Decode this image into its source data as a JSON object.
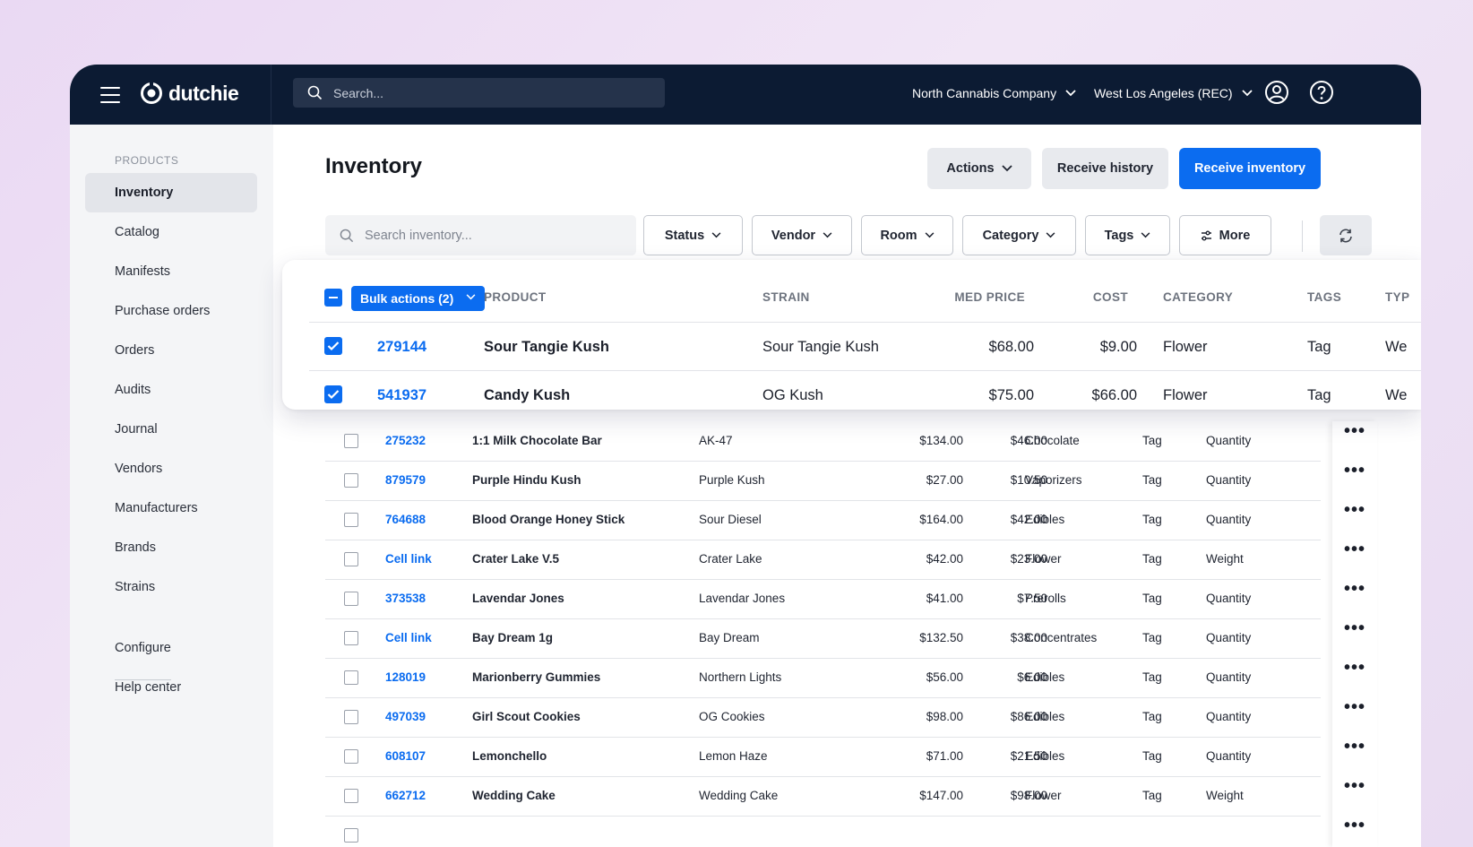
{
  "topbar": {
    "brand": "dutchie",
    "search_placeholder": "Search...",
    "company": "North Cannabis Company",
    "location": "West Los Angeles (REC)"
  },
  "sidebar": {
    "section_label": "PRODUCTS",
    "items": [
      {
        "label": "Inventory"
      },
      {
        "label": "Catalog"
      },
      {
        "label": "Manifests"
      },
      {
        "label": "Purchase orders"
      },
      {
        "label": "Orders"
      },
      {
        "label": "Audits"
      },
      {
        "label": "Journal"
      },
      {
        "label": "Vendors"
      },
      {
        "label": "Manufacturers"
      },
      {
        "label": "Brands"
      },
      {
        "label": "Strains"
      }
    ],
    "footer_items": [
      {
        "label": "Configure"
      },
      {
        "label": "Help center"
      }
    ]
  },
  "page": {
    "title": "Inventory",
    "actions_label": "Actions",
    "receive_history_label": "Receive history",
    "receive_inventory_label": "Receive inventory",
    "search_placeholder": "Search inventory...",
    "filters": [
      "Status",
      "Vendor",
      "Room",
      "Category",
      "Tags",
      "More"
    ]
  },
  "selection_card": {
    "bulk_label": "Bulk actions (2)",
    "columns": [
      "PRODUCT",
      "STRAIN",
      "MED PRICE",
      "COST",
      "CATEGORY",
      "TAGS",
      "TYP"
    ],
    "rows": [
      {
        "id": "279144",
        "product": "Sour Tangie Kush",
        "strain": "Sour Tangie Kush",
        "med": "$68.00",
        "cost": "$9.00",
        "category": "Flower",
        "tags": "Tag",
        "type": "We"
      },
      {
        "id": "541937",
        "product": "Candy Kush",
        "strain": "OG Kush",
        "med": "$75.00",
        "cost": "$66.00",
        "category": "Flower",
        "tags": "Tag",
        "type": "We"
      }
    ]
  },
  "table": {
    "rows": [
      {
        "id": "275232",
        "product": "1:1 Milk Chocolate Bar",
        "strain": "AK-47",
        "med": "$134.00",
        "cost": "$46.00",
        "category": "Chocolate",
        "tags": "Tag",
        "type": "Quantity"
      },
      {
        "id": "879579",
        "product": "Purple Hindu Kush",
        "strain": "Purple Kush",
        "med": "$27.00",
        "cost": "$10.50",
        "category": "Vaporizers",
        "tags": "Tag",
        "type": "Quantity"
      },
      {
        "id": "764688",
        "product": "Blood Orange Honey Stick",
        "strain": "Sour Diesel",
        "med": "$164.00",
        "cost": "$42.00",
        "category": "Edibles",
        "tags": "Tag",
        "type": "Quantity"
      },
      {
        "id": "Cell link",
        "product": "Crater Lake V.5",
        "strain": "Crater Lake",
        "med": "$42.00",
        "cost": "$23.00",
        "category": "Flower",
        "tags": "Tag",
        "type": "Weight"
      },
      {
        "id": "373538",
        "product": "Lavendar Jones",
        "strain": "Lavendar Jones",
        "med": "$41.00",
        "cost": "$7.50",
        "category": "Prerolls",
        "tags": "Tag",
        "type": "Quantity"
      },
      {
        "id": "Cell link",
        "product": "Bay Dream 1g",
        "strain": "Bay Dream",
        "med": "$132.50",
        "cost": "$38.00",
        "category": "Concentrates",
        "tags": "Tag",
        "type": "Quantity"
      },
      {
        "id": "128019",
        "product": "Marionberry Gummies",
        "strain": "Northern Lights",
        "med": "$56.00",
        "cost": "$6.00",
        "category": "Edibles",
        "tags": "Tag",
        "type": "Quantity"
      },
      {
        "id": "497039",
        "product": "Girl Scout Cookies",
        "strain": "OG Cookies",
        "med": "$98.00",
        "cost": "$86.00",
        "category": "Edibles",
        "tags": "Tag",
        "type": "Quantity"
      },
      {
        "id": "608107",
        "product": "Lemonchello",
        "strain": "Lemon Haze",
        "med": "$71.00",
        "cost": "$21.50",
        "category": "Edibles",
        "tags": "Tag",
        "type": "Quantity"
      },
      {
        "id": "662712",
        "product": "Wedding Cake",
        "strain": "Wedding Cake",
        "med": "$147.00",
        "cost": "$98.00",
        "category": "Flower",
        "tags": "Tag",
        "type": "Weight"
      }
    ]
  },
  "colors": {
    "topbar": "#0c1b33",
    "primary": "#0b6cf0",
    "sidebar_bg": "#f4f5f7"
  }
}
